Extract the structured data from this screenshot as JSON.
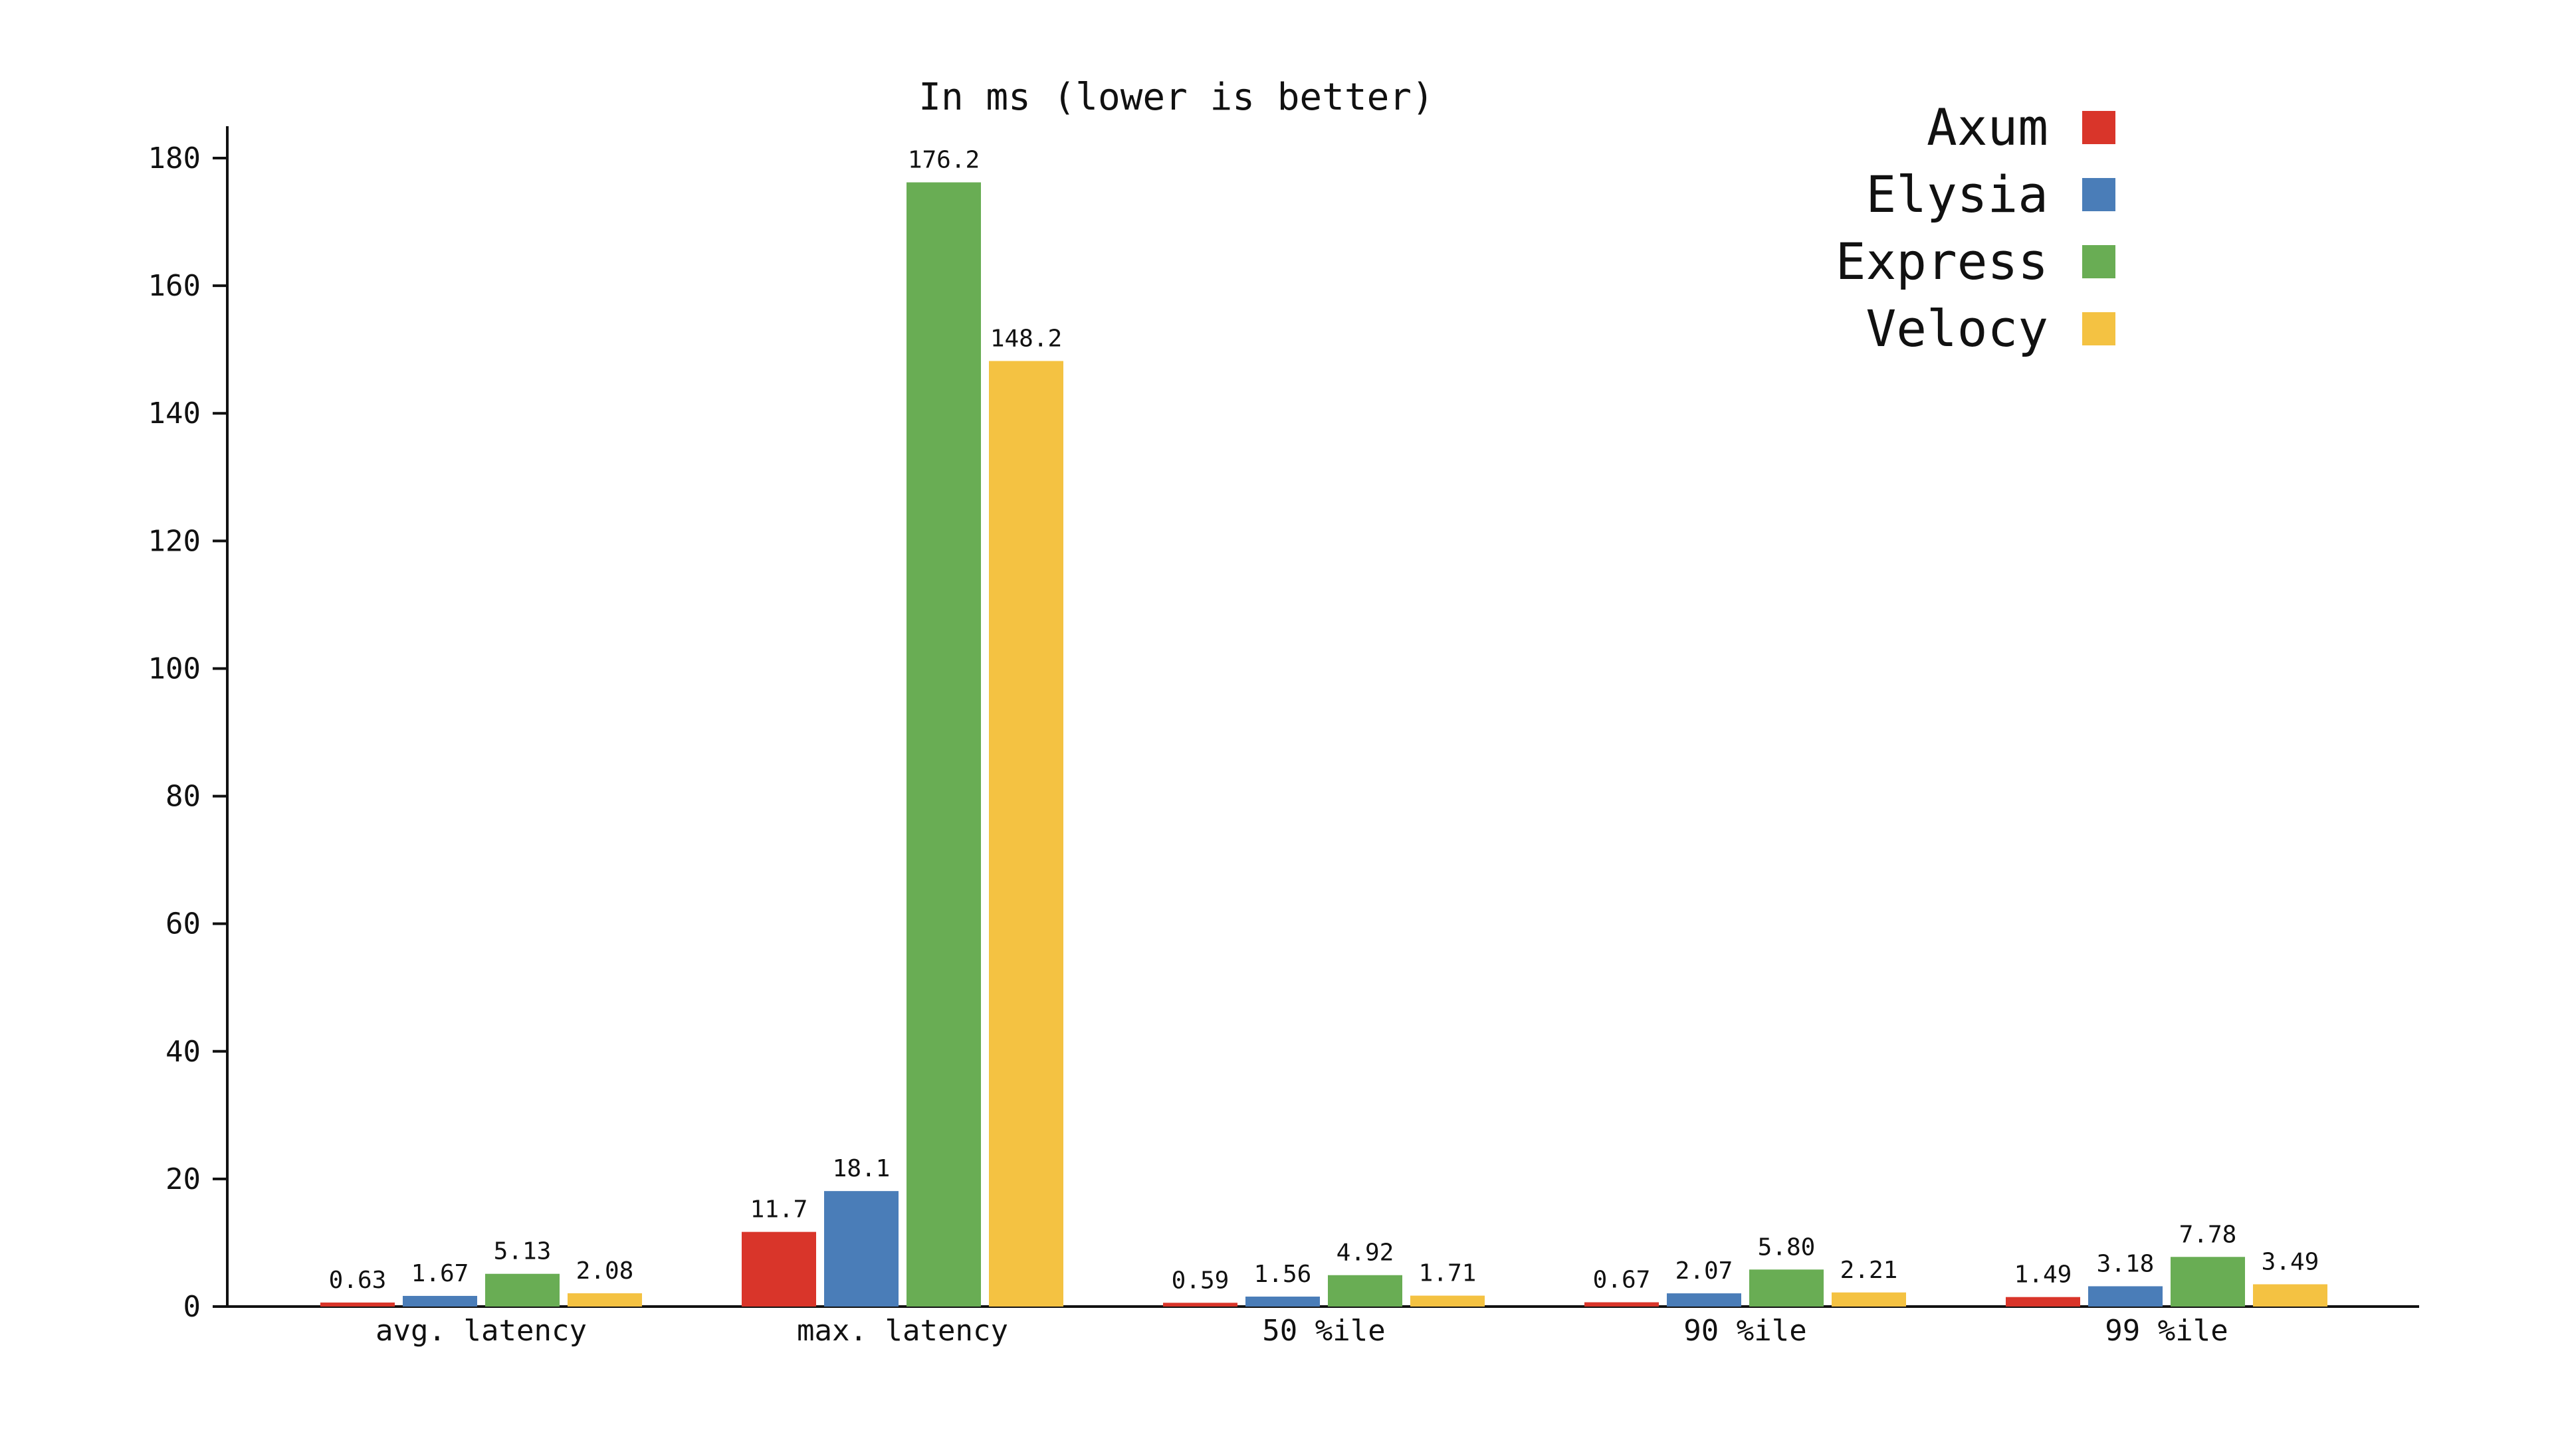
{
  "chart_data": {
    "type": "bar",
    "title": "In ms (lower is better)",
    "xlabel": "",
    "ylabel": "",
    "ylim": [
      0,
      185
    ],
    "yticks": [
      0,
      20,
      40,
      60,
      80,
      100,
      120,
      140,
      160,
      180
    ],
    "grid": false,
    "legend": "top-right",
    "categories": [
      "avg. latency",
      "max. latency",
      "50 %ile",
      "90 %ile",
      "99 %ile"
    ],
    "series": [
      {
        "name": "Axum",
        "color": "#d9352a",
        "values": [
          0.63,
          11.7,
          0.59,
          0.67,
          1.49
        ],
        "labels": [
          "0.63",
          "11.7",
          "0.59",
          "0.67",
          "1.49"
        ]
      },
      {
        "name": "Elysia",
        "color": "#4a7db8",
        "values": [
          1.67,
          18.1,
          1.56,
          2.07,
          3.18
        ],
        "labels": [
          "1.67",
          "18.1",
          "1.56",
          "2.07",
          "3.18"
        ]
      },
      {
        "name": "Express",
        "color": "#69ad54",
        "values": [
          5.13,
          176.2,
          4.92,
          5.8,
          7.78
        ],
        "labels": [
          "5.13",
          "176.2",
          "4.92",
          "5.80",
          "7.78"
        ]
      },
      {
        "name": "Velocy",
        "color": "#f4c242",
        "values": [
          2.08,
          148.2,
          1.71,
          2.21,
          3.49
        ],
        "labels": [
          "2.08",
          "148.2",
          "1.71",
          "2.21",
          "3.49"
        ]
      }
    ]
  }
}
